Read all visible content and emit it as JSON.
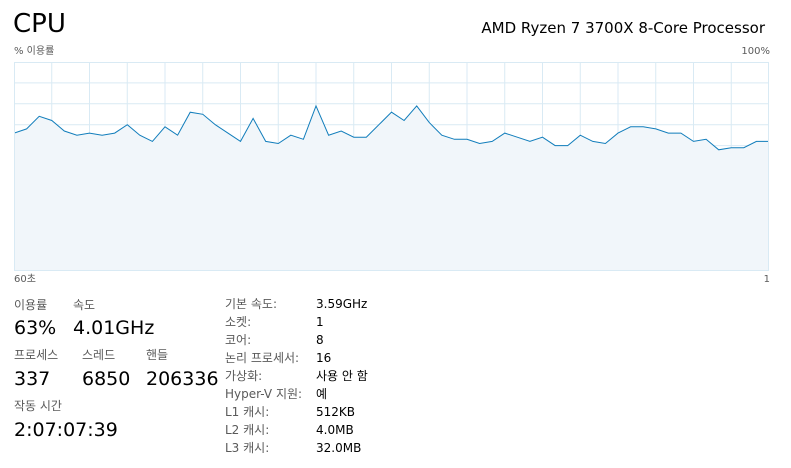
{
  "header": {
    "title": "CPU",
    "processor": "AMD Ryzen 7 3700X 8-Core Processor"
  },
  "graph": {
    "y_axis_label": "% 이용률",
    "y_max_label": "100%",
    "x_start_label": "60초",
    "x_end_label": "1"
  },
  "chart_data": {
    "type": "area",
    "xlim": [
      60,
      0
    ],
    "ylim": [
      0,
      100
    ],
    "grid": true,
    "x": [
      60,
      59,
      58,
      57,
      56,
      55,
      54,
      53,
      52,
      51,
      50,
      49,
      48,
      47,
      46,
      45,
      44,
      43,
      42,
      41,
      40,
      39,
      38,
      37,
      36,
      35,
      34,
      33,
      32,
      31,
      30,
      29,
      28,
      27,
      26,
      25,
      24,
      23,
      22,
      21,
      20,
      19,
      18,
      17,
      16,
      15,
      14,
      13,
      12,
      11,
      10,
      9,
      8,
      7,
      6,
      5,
      4,
      3,
      2,
      1,
      0
    ],
    "values": [
      66,
      68,
      74,
      72,
      67,
      65,
      66,
      65,
      66,
      70,
      65,
      62,
      69,
      65,
      76,
      75,
      70,
      66,
      62,
      73,
      62,
      61,
      65,
      63,
      79,
      65,
      67,
      64,
      64,
      70,
      76,
      72,
      79,
      71,
      65,
      63,
      63,
      61,
      62,
      66,
      64,
      62,
      64,
      60,
      60,
      65,
      62,
      61,
      66,
      69,
      69,
      68,
      66,
      66,
      62,
      63,
      58,
      59,
      59,
      62,
      62
    ]
  },
  "stats": {
    "utilization": {
      "label": "이용률",
      "value": "63%"
    },
    "speed": {
      "label": "속도",
      "value": "4.01GHz"
    },
    "processes": {
      "label": "프로세스",
      "value": "337"
    },
    "threads": {
      "label": "스레드",
      "value": "6850"
    },
    "handles": {
      "label": "핸들",
      "value": "206336"
    },
    "uptime": {
      "label": "작동 시간",
      "value": "2:07:07:39"
    }
  },
  "specs": [
    {
      "key": "기본 속도:",
      "value": "3.59GHz"
    },
    {
      "key": "소켓:",
      "value": "1"
    },
    {
      "key": "코어:",
      "value": "8"
    },
    {
      "key": "논리 프로세서:",
      "value": "16"
    },
    {
      "key": "가상화:",
      "value": "사용 안 함"
    },
    {
      "key": "Hyper-V 지원:",
      "value": "예"
    },
    {
      "key": "L1 캐시:",
      "value": "512KB"
    },
    {
      "key": "L2 캐시:",
      "value": "4.0MB"
    },
    {
      "key": "L3 캐시:",
      "value": "32.0MB"
    }
  ],
  "colors": {
    "line": "#117dbb",
    "fill": "#f1f6fa",
    "grid": "#d9eaf4",
    "border": "#d9eaf4"
  }
}
